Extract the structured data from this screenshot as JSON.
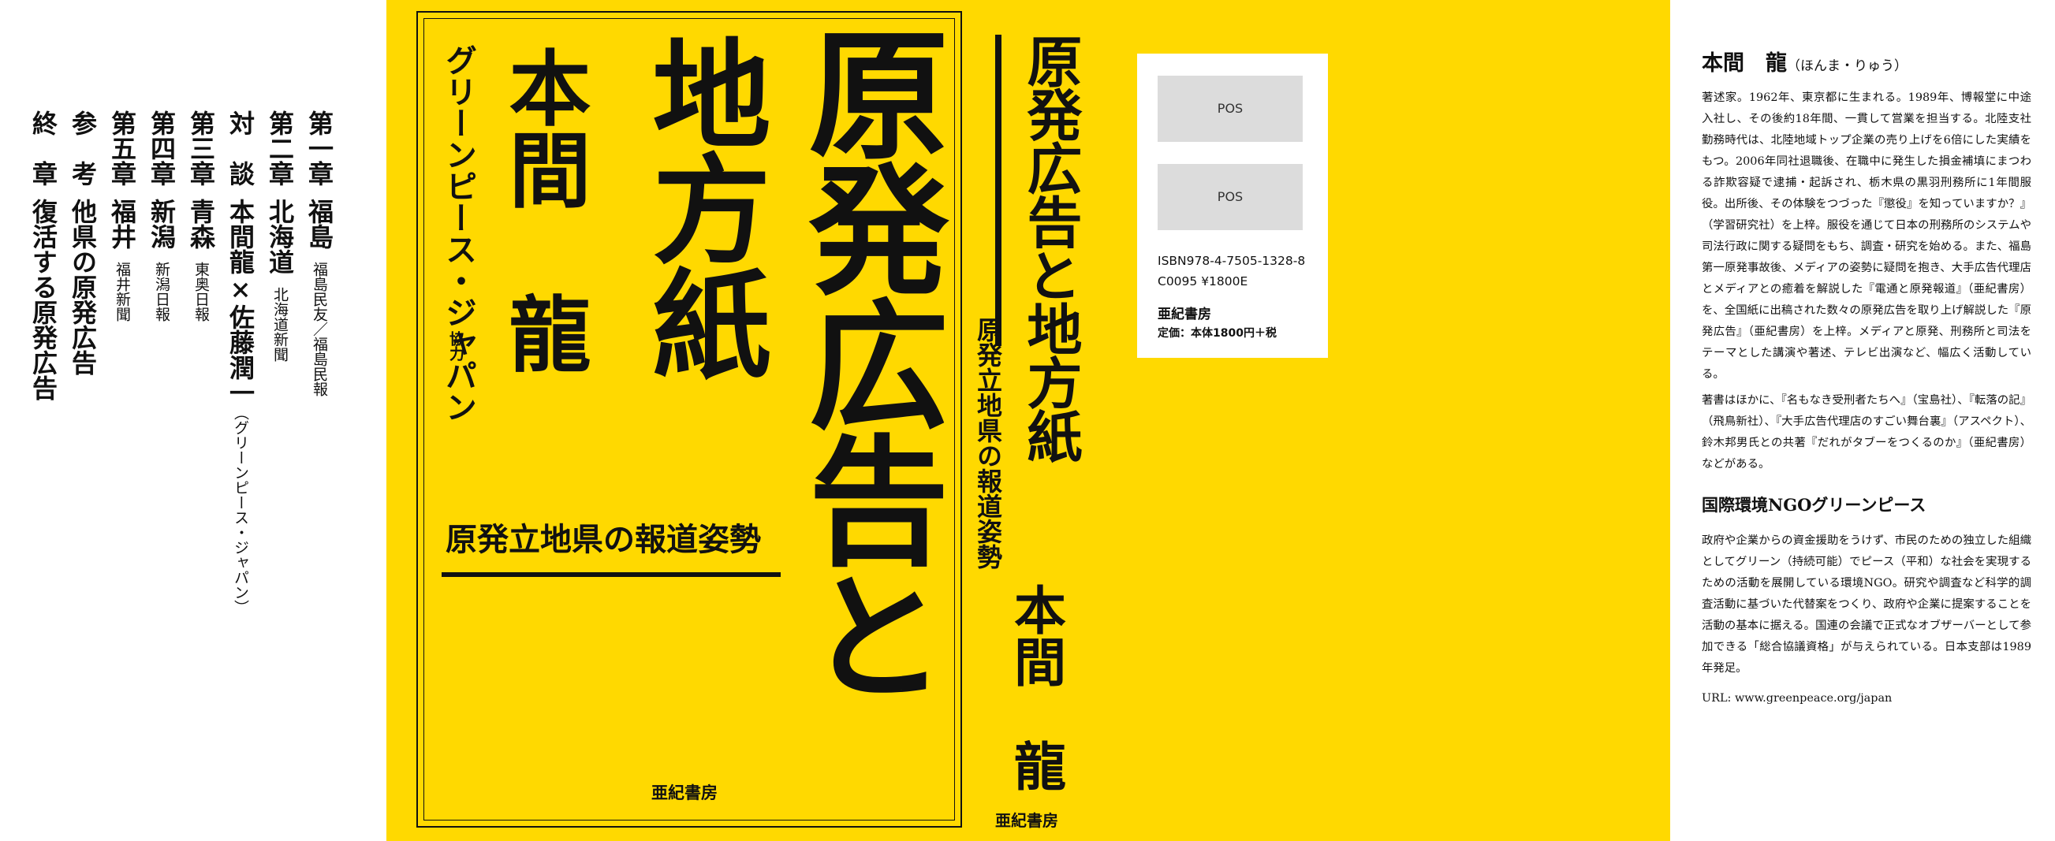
{
  "toc": {
    "ch1": {
      "label": "第一章",
      "title": "福島",
      "sub": "福島民友／福島民報"
    },
    "ch2": {
      "label": "第二章",
      "title": "北海道",
      "sub": "北海道新聞"
    },
    "taidan": {
      "label": "対　談",
      "title": "本間龍×佐藤潤一",
      "sub": "（グリーンピース・ジャパン）"
    },
    "ch3": {
      "label": "第三章",
      "title": "青森",
      "sub": "東奥日報"
    },
    "ch4": {
      "label": "第四章",
      "title": "新潟",
      "sub": "新潟日報"
    },
    "ch5": {
      "label": "第五章",
      "title": "福井",
      "sub": "福井新聞"
    },
    "ref": {
      "label": "参　考",
      "title": "他県の原発広告"
    },
    "end": {
      "label": "終　章",
      "title": "復活する原発広告"
    }
  },
  "front": {
    "title_main": "原発広告と",
    "title_sub": "地方紙",
    "author": "本間　龍",
    "cooperation": "グリーンピース・ジャパン",
    "cooperation_label": "協力",
    "subtitle": "原発立地県の報道姿勢",
    "publisher": "亜紀書房"
  },
  "spine": {
    "title": "原発広告と地方紙",
    "subtitle": "原発立地県の報道姿勢",
    "author": "本間　龍",
    "publisher": "亜紀書房"
  },
  "back_label": {
    "pos1": "POS",
    "pos2": "POS",
    "isbn": "ISBN978-4-7505-1328-8",
    "cnum": "C0095  ¥1800E",
    "publisher": "亜紀書房",
    "price": "定価：本体1800円＋税"
  },
  "author_flap": {
    "name": "本間　龍",
    "reading": "（ほんま・りゅう）",
    "bio_1": "著述家。1962年、東京都に生まれる。1989年、博報堂に中途入社し、その後約18年間、一貫して営業を担当する。北陸支社勤務時代は、北陸地域トップ企業の売り上げを6倍にした実績をもつ。2006年同社退職後、在職中に発生した損金補填にまつわる詐欺容疑で逮捕・起訴され、栃木県の黒羽刑務所に1年間服役。出所後、その体験をつづった『懲役』を知っていますか？』（学習研究社）を上梓。服役を通じて日本の刑務所のシステムや司法行政に関する疑問をもち、調査・研究を始める。また、福島第一原発事故後、メディアの姿勢に疑問を抱き、大手広告代理店とメディアとの癒着を解説した『電通と原発報道』（亜紀書房）を、全国紙に出稿された数々の原発広告を取り上げ解説した『原発広告』（亜紀書房）を上梓。メディアと原発、刑務所と司法をテーマとした講演や著述、テレビ出演など、幅広く活動している。",
    "bio_2": "著書はほかに、『名もなき受刑者たちへ』（宝島社）、『転落の記』（飛鳥新社）、『大手広告代理店のすごい舞台裏』（アスペクト）、鈴木邦男氏との共著『だれがタブーをつくるのか』（亜紀書房）などがある。",
    "org_title": "国際環境NGOグリーンピース",
    "org_desc": "政府や企業からの資金援助をうけず、市民のための独立した組織としてグリーン（持続可能）でピース（平和）な社会を実現するための活動を展開している環境NGO。研究や調査など科学的調査活動に基づいた代替案をつくり、政府や企業に提案することを活動の基本に据える。国連の会議で正式なオブザーバーとして参加できる「総合協議資格」が与えられている。日本支部は1989年発足。",
    "url": "URL: www.greenpeace.org/japan"
  },
  "colors": {
    "cover_yellow": "#ffd900",
    "ink": "#111111",
    "pos_gray": "#dcdcdc"
  }
}
